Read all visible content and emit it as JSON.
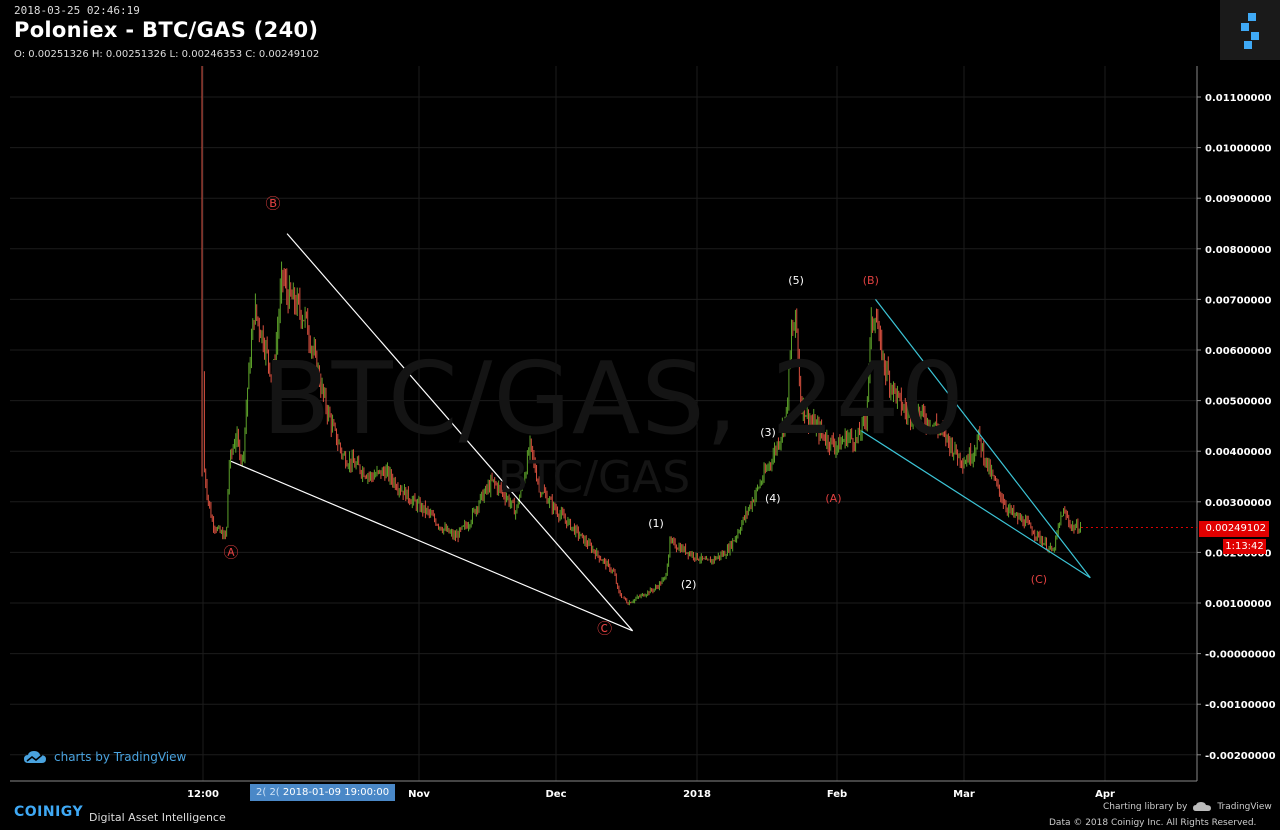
{
  "header": {
    "timestamp": "2018-03-25 02:46:19",
    "title": "Poloniex - BTC/GAS (240)",
    "ohlc": "O: 0.00251326 H: 0.00251326 L: 0.00246353 C: 0.00249102"
  },
  "watermark": {
    "main": "BTC/GAS, 240",
    "sub": "BTC/GAS"
  },
  "price_tag": "0.00249102",
  "countdown": "1:13:42",
  "crosshair_label": "2018-01-09 19:00:00",
  "crosshair_prefix": "2( 2(",
  "footer": {
    "tv_brand": "charts by TradingView",
    "coinigy": "COINIGY",
    "tagline": "Digital Asset Intelligence",
    "charting_lib": "Charting library by",
    "tv_small": "TradingView",
    "data_notice": "Data © 2018  Coinigy Inc. All Rights Reserved."
  },
  "colors": {
    "background": "#000000",
    "grid": "#1c1c1c",
    "candle_up": "#5da22a",
    "candle_down": "#d9503f",
    "trend_white": "#ffffff",
    "trend_cyan": "#3cc4d6",
    "label_red": "#e04040",
    "price_tag": "#e00000"
  },
  "icons": {
    "logo": "coinigy-logo-icon",
    "cloud": "tradingview-cloud-icon"
  },
  "chart_data": {
    "type": "candlestick",
    "title": "Poloniex - BTC/GAS (240)",
    "x_ticks": [
      "12:00",
      "Nov",
      "Dec",
      "2018",
      "Feb",
      "Mar",
      "Apr"
    ],
    "y_ticks": [
      "0.01100000",
      "0.01000000",
      "0.00900000",
      "0.00800000",
      "0.00700000",
      "0.00600000",
      "0.00500000",
      "0.00400000",
      "0.00300000",
      "0.00200000",
      "0.00100000",
      "-0.00000000",
      "-0.00100000",
      "-0.00200000"
    ],
    "ylim": [
      -0.0024,
      0.0116
    ],
    "x_range_days": [
      0,
      178
    ],
    "last_close": 0.00249102,
    "price_path": [
      [
        0,
        0.0055
      ],
      [
        0.3,
        0.0036
      ],
      [
        1,
        0.0031
      ],
      [
        2,
        0.0026
      ],
      [
        3.5,
        0.0024
      ],
      [
        5,
        0.0023
      ],
      [
        5.5,
        0.0037
      ],
      [
        7,
        0.0043
      ],
      [
        8.5,
        0.0038
      ],
      [
        9.5,
        0.0052
      ],
      [
        11,
        0.0068
      ],
      [
        13,
        0.0062
      ],
      [
        15,
        0.0054
      ],
      [
        17,
        0.0075
      ],
      [
        18,
        0.0071
      ],
      [
        20,
        0.0069
      ],
      [
        22,
        0.0066
      ],
      [
        24,
        0.0058
      ],
      [
        26,
        0.005
      ],
      [
        28,
        0.0044
      ],
      [
        30,
        0.0039
      ],
      [
        33,
        0.0037
      ],
      [
        36,
        0.0035
      ],
      [
        39,
        0.0036
      ],
      [
        42,
        0.0033
      ],
      [
        45,
        0.003
      ],
      [
        48,
        0.0028
      ],
      [
        51,
        0.0025
      ],
      [
        54,
        0.0023
      ],
      [
        57,
        0.0026
      ],
      [
        59,
        0.003
      ],
      [
        62,
        0.0034
      ],
      [
        65,
        0.0031
      ],
      [
        67,
        0.0028
      ],
      [
        69,
        0.0036
      ],
      [
        70,
        0.0041
      ],
      [
        72,
        0.0033
      ],
      [
        75,
        0.0029
      ],
      [
        78,
        0.0026
      ],
      [
        81,
        0.0023
      ],
      [
        84,
        0.002
      ],
      [
        86,
        0.0018
      ],
      [
        88,
        0.0016
      ],
      [
        89,
        0.0012
      ],
      [
        91,
        0.001
      ],
      [
        93,
        0.0011
      ],
      [
        95,
        0.0012
      ],
      [
        97,
        0.0013
      ],
      [
        99,
        0.0015
      ],
      [
        100,
        0.0022
      ],
      [
        102,
        0.0021
      ],
      [
        104,
        0.002
      ],
      [
        106,
        0.0019
      ],
      [
        108,
        0.0018
      ],
      [
        110,
        0.0019
      ],
      [
        112,
        0.002
      ],
      [
        114,
        0.0023
      ],
      [
        116,
        0.0027
      ],
      [
        118,
        0.0031
      ],
      [
        120,
        0.0035
      ],
      [
        122,
        0.0039
      ],
      [
        124,
        0.0044
      ],
      [
        125,
        0.0048
      ],
      [
        126,
        0.0063
      ],
      [
        127,
        0.0066
      ],
      [
        128,
        0.005
      ],
      [
        130,
        0.0046
      ],
      [
        132,
        0.0044
      ],
      [
        134,
        0.0042
      ],
      [
        136,
        0.0041
      ],
      [
        138,
        0.0043
      ],
      [
        140,
        0.0042
      ],
      [
        142,
        0.0047
      ],
      [
        143,
        0.0064
      ],
      [
        144,
        0.0068
      ],
      [
        145,
        0.006
      ],
      [
        147,
        0.0054
      ],
      [
        149,
        0.005
      ],
      [
        151,
        0.0047
      ],
      [
        153,
        0.0048
      ],
      [
        155,
        0.0046
      ],
      [
        157,
        0.0045
      ],
      [
        159,
        0.0043
      ],
      [
        161,
        0.004
      ],
      [
        163,
        0.0038
      ],
      [
        165,
        0.004
      ],
      [
        166,
        0.0043
      ],
      [
        168,
        0.0037
      ],
      [
        170,
        0.0033
      ],
      [
        172,
        0.0029
      ],
      [
        174,
        0.0027
      ],
      [
        176,
        0.0026
      ],
      [
        178,
        0.0024
      ],
      [
        180,
        0.0022
      ],
      [
        182,
        0.002
      ],
      [
        183,
        0.0024
      ],
      [
        184,
        0.0028
      ],
      [
        185,
        0.0027
      ],
      [
        186,
        0.0025
      ],
      [
        188,
        0.0025
      ]
    ],
    "trendlines": [
      {
        "color": "white",
        "from": [
          18,
          0.0083
        ],
        "to": [
          92,
          0.00045
        ]
      },
      {
        "color": "white",
        "from": [
          6,
          0.0038
        ],
        "to": [
          92,
          0.00045
        ]
      },
      {
        "color": "cyan",
        "from": [
          144,
          0.007
        ],
        "to": [
          190,
          0.0015
        ]
      },
      {
        "color": "cyan",
        "from": [
          141,
          0.0044
        ],
        "to": [
          190,
          0.0015
        ]
      }
    ],
    "wave_labels": [
      {
        "text": "Ⓐ",
        "x": 6,
        "y": 0.0019,
        "color": "red"
      },
      {
        "text": "Ⓑ",
        "x": 15,
        "y": 0.0088,
        "color": "red"
      },
      {
        "text": "Ⓒ",
        "x": 86,
        "y": 0.0004,
        "color": "red"
      },
      {
        "text": "(1)",
        "x": 97,
        "y": 0.0025,
        "color": "white"
      },
      {
        "text": "(2)",
        "x": 104,
        "y": 0.0013,
        "color": "white"
      },
      {
        "text": "(3)",
        "x": 121,
        "y": 0.0043,
        "color": "white"
      },
      {
        "text": "(4)",
        "x": 122,
        "y": 0.003,
        "color": "white"
      },
      {
        "text": "(5)",
        "x": 127,
        "y": 0.0073,
        "color": "white"
      },
      {
        "text": "(A)",
        "x": 135,
        "y": 0.003,
        "color": "red"
      },
      {
        "text": "(B)",
        "x": 143,
        "y": 0.0073,
        "color": "red"
      },
      {
        "text": "(C)",
        "x": 179,
        "y": 0.0014,
        "color": "red"
      }
    ]
  }
}
